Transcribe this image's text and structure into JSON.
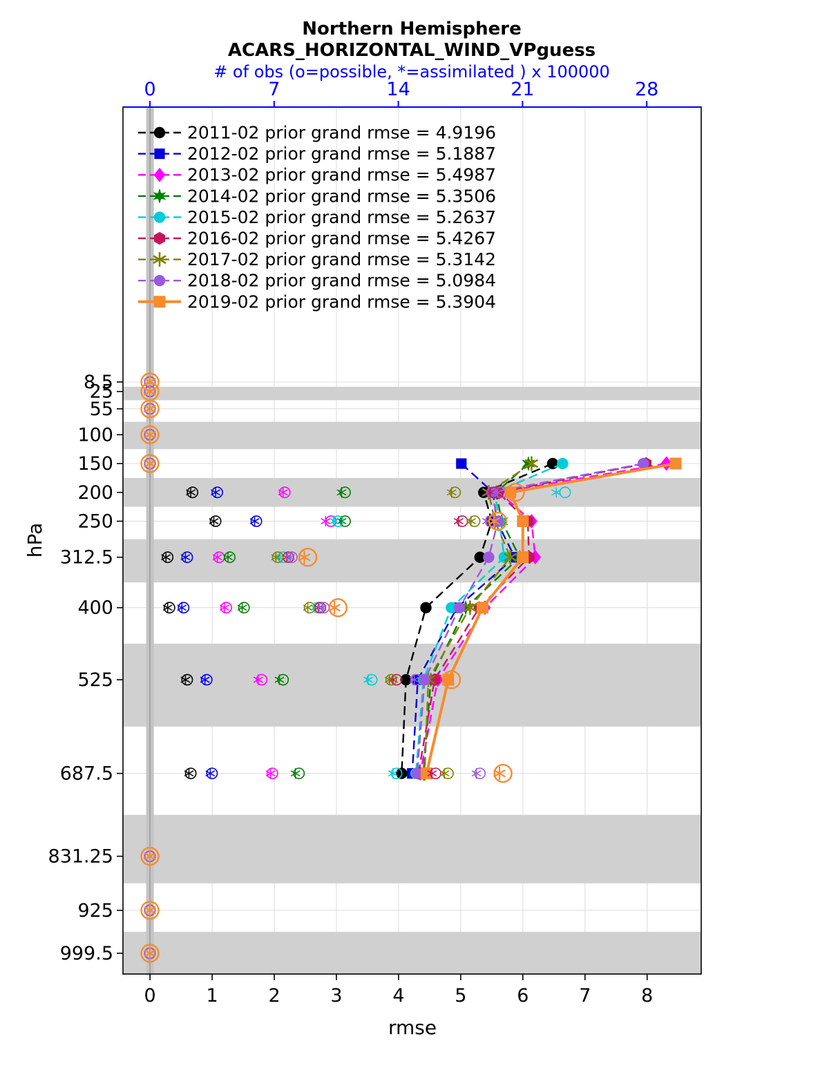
{
  "title": {
    "line1": "Northern Hemisphere",
    "line2": "ACARS_HORIZONTAL_WIND_VPguess",
    "obs_axis_label": "# of obs (o=possible, *=assimilated ) x 100000"
  },
  "axes": {
    "x_label": "rmse",
    "y_label": "hPa",
    "x_ticks": [
      0,
      1,
      2,
      3,
      4,
      5,
      6,
      7,
      8
    ],
    "top_ticks": [
      0,
      7,
      14,
      21,
      28
    ],
    "y_tick_labels": [
      "8.5",
      "25",
      "55",
      "100",
      "150",
      "200",
      "250",
      "312.5",
      "400",
      "525",
      "687.5",
      "831.25",
      "925",
      "999.5"
    ]
  },
  "colors": {
    "axis_top": "#0000ff",
    "band": "#d0d0d0",
    "zero_stripe": "#c4c4c4",
    "zero_line": "#9a9a9a",
    "grid": "#dcdcdc",
    "frame": "#000000"
  },
  "chart_data": {
    "type": "line",
    "title": "Northern Hemisphere ACARS_HORIZONTAL_WIND_VPguess",
    "xlabel": "rmse",
    "ylabel": "hPa",
    "top_xlabel": "# of obs (o=possible, *=assimilated ) x 100000",
    "xlim": [
      -0.435,
      8.87
    ],
    "top_xlim": [
      -1.52,
      31.07
    ],
    "ylim": [
      -468.4,
      1035.5
    ],
    "y_axis_note": "pressure (hPa) increasing downward, linear scale",
    "grid": true,
    "legend_position": "upper-left-inside",
    "levels": [
      8.5,
      25,
      55,
      100,
      150,
      200,
      250,
      312.5,
      400,
      525,
      687.5,
      831.25,
      925,
      999.5
    ],
    "shaded_levels": [
      25,
      100,
      200,
      312.5,
      525,
      831.25,
      999.5
    ],
    "series": [
      {
        "label": "2011-02 prior grand rmse = 4.9196",
        "year": "2011-02",
        "grand_rmse": 4.9196,
        "color": "#000000",
        "marker": "circle",
        "line_style": "dashed",
        "rmse": [
          null,
          null,
          null,
          null,
          6.48,
          5.37,
          5.5,
          5.31,
          4.44,
          4.12,
          4.05,
          null,
          null,
          null
        ],
        "obs_possible": [
          0,
          0,
          0,
          0,
          0,
          2.4,
          3.7,
          1.0,
          1.1,
          2.1,
          2.3,
          0,
          0,
          0
        ],
        "obs_assimilated": [
          0,
          0,
          0,
          0,
          0,
          2.3,
          3.6,
          0.9,
          1.0,
          2.0,
          2.2,
          0,
          0,
          0
        ]
      },
      {
        "label": "2012-02 prior grand rmse = 5.1887",
        "year": "2012-02",
        "grand_rmse": 5.1887,
        "color": "#0000e0",
        "marker": "square",
        "line_style": "dashed",
        "rmse": [
          null,
          null,
          null,
          null,
          5.01,
          5.52,
          5.58,
          5.87,
          4.94,
          4.31,
          4.22,
          null,
          null,
          null
        ],
        "obs_possible": [
          0,
          0,
          0,
          0,
          0,
          3.8,
          6.0,
          2.1,
          1.9,
          3.2,
          3.5,
          0,
          0,
          0
        ],
        "obs_assimilated": [
          0,
          0,
          0,
          0,
          0,
          3.7,
          5.9,
          2.0,
          1.8,
          3.1,
          3.4,
          0,
          0,
          0
        ]
      },
      {
        "label": "2013-02 prior grand rmse = 5.4987",
        "year": "2013-02",
        "grand_rmse": 5.4987,
        "color": "#ff00ff",
        "marker": "diamond",
        "line_style": "dashed",
        "rmse": [
          null,
          null,
          null,
          null,
          8.31,
          5.62,
          6.14,
          6.2,
          5.39,
          4.63,
          4.35,
          null,
          null,
          null
        ],
        "obs_possible": [
          0,
          0,
          0,
          0,
          0,
          7.6,
          10.2,
          3.9,
          4.3,
          6.3,
          6.9,
          0,
          0,
          0
        ],
        "obs_assimilated": [
          0,
          0,
          0,
          0,
          0,
          7.5,
          9.9,
          3.8,
          4.2,
          6.1,
          6.8,
          0,
          0,
          0
        ]
      },
      {
        "label": "2014-02 prior grand rmse = 5.3506",
        "year": "2014-02",
        "grand_rmse": 5.3506,
        "color": "#008000",
        "marker": "star",
        "line_style": "dashed",
        "rmse": [
          null,
          null,
          null,
          null,
          6.09,
          5.57,
          5.66,
          5.95,
          5.08,
          4.52,
          4.4,
          null,
          null,
          null
        ],
        "obs_possible": [
          0,
          0,
          0,
          0,
          0,
          11.0,
          11.0,
          4.5,
          5.3,
          7.5,
          8.4,
          0,
          0,
          0
        ],
        "obs_assimilated": [
          0,
          0,
          0,
          0,
          0,
          10.8,
          10.8,
          4.4,
          5.2,
          7.3,
          8.2,
          0,
          0,
          0
        ]
      },
      {
        "label": "2015-02 prior grand rmse = 5.2637",
        "year": "2015-02",
        "grand_rmse": 5.2637,
        "color": "#00cdd7",
        "marker": "circle",
        "line_style": "dashed",
        "rmse": [
          null,
          null,
          null,
          null,
          6.64,
          5.55,
          5.62,
          5.7,
          4.85,
          4.4,
          4.28,
          null,
          null,
          null
        ],
        "obs_possible": [
          0,
          0,
          0,
          0,
          0,
          23.4,
          10.6,
          7.5,
          9.5,
          12.5,
          13.9,
          0,
          0,
          0
        ],
        "obs_assimilated": [
          0,
          0,
          0,
          0,
          0,
          22.9,
          10.4,
          7.3,
          9.3,
          12.3,
          13.7,
          0,
          0,
          0
        ]
      },
      {
        "label": "2016-02 prior grand rmse = 5.4267",
        "year": "2016-02",
        "grand_rmse": 5.4267,
        "color": "#c2185b",
        "marker": "hexagon",
        "line_style": "dashed",
        "rmse": [
          null,
          null,
          null,
          null,
          7.98,
          5.6,
          6.08,
          6.1,
          5.3,
          4.58,
          4.32,
          null,
          null,
          null
        ],
        "obs_possible": [
          0,
          0,
          0,
          0,
          0,
          19.4,
          17.6,
          7.8,
          9.6,
          13.9,
          16.1,
          0,
          0,
          0
        ],
        "obs_assimilated": [
          0,
          0,
          0,
          0,
          0,
          19.2,
          17.4,
          7.7,
          9.5,
          13.7,
          15.9,
          0,
          0,
          0
        ]
      },
      {
        "label": "2017-02 prior grand rmse = 5.3142",
        "year": "2017-02",
        "grand_rmse": 5.3142,
        "color": "#808000",
        "marker": "asterisk",
        "line_style": "dashed",
        "rmse": [
          null,
          null,
          null,
          null,
          6.14,
          5.45,
          5.55,
          5.8,
          5.15,
          4.48,
          4.42,
          null,
          null,
          null
        ],
        "obs_possible": [
          0,
          0,
          0,
          0,
          0,
          17.2,
          18.3,
          7.2,
          9.0,
          13.6,
          16.8,
          0,
          0,
          0
        ],
        "obs_assimilated": [
          0,
          0,
          0,
          0,
          0,
          17.0,
          18.1,
          7.1,
          8.9,
          13.5,
          16.6,
          0,
          0,
          0
        ]
      },
      {
        "label": "2018-02 prior grand rmse = 5.0984",
        "year": "2018-02",
        "grand_rmse": 5.0984,
        "color": "#9b59e0",
        "marker": "circle",
        "line_style": "dashed",
        "rmse": [
          null,
          null,
          null,
          null,
          7.94,
          5.5,
          5.6,
          5.45,
          4.98,
          4.42,
          4.3,
          null,
          null,
          null
        ],
        "obs_possible": [
          0,
          0,
          0,
          0,
          0,
          19.8,
          19.2,
          8.0,
          9.8,
          15.0,
          18.6,
          0,
          0,
          0
        ],
        "obs_assimilated": [
          0,
          0,
          0,
          0,
          0,
          19.6,
          19.0,
          7.9,
          9.7,
          14.9,
          18.4,
          0,
          0,
          0
        ]
      },
      {
        "label": "2019-02 prior grand rmse = 5.3904",
        "year": "2019-02",
        "grand_rmse": 5.3904,
        "color": "#f78b2d",
        "marker": "square",
        "line_style": "solid",
        "rmse": [
          null,
          null,
          null,
          null,
          8.46,
          5.8,
          6.0,
          6.0,
          5.35,
          4.8,
          4.45,
          null,
          null,
          null
        ],
        "obs_possible": [
          0,
          0,
          0,
          0,
          0,
          20.6,
          19.6,
          8.9,
          10.6,
          17.0,
          19.9,
          0,
          0,
          0
        ],
        "obs_assimilated": [
          0,
          0,
          0,
          0,
          0,
          20.3,
          19.4,
          8.7,
          10.4,
          16.8,
          19.7,
          0,
          0,
          0
        ]
      }
    ]
  }
}
